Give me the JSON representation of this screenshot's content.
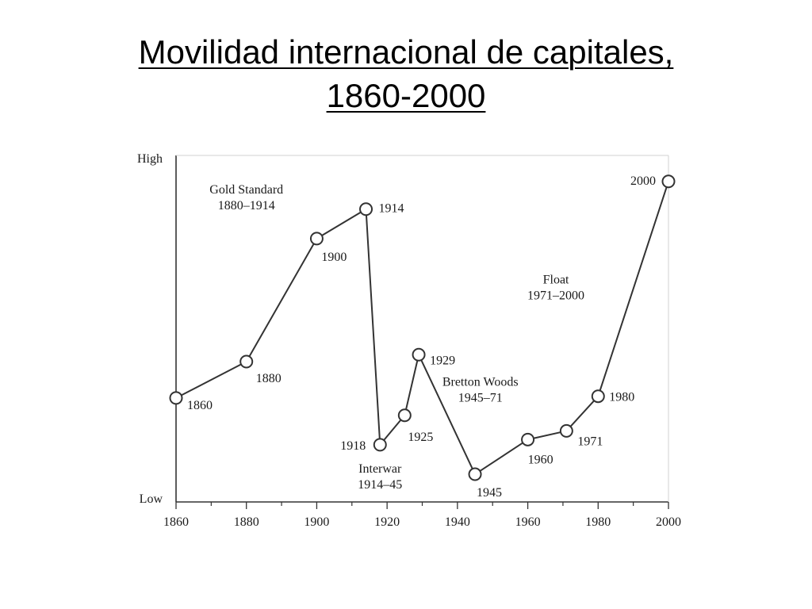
{
  "slide": {
    "title_line1": "Movilidad internacional de capitales,",
    "title_line2": "1860-2000"
  },
  "chart_data": {
    "type": "line",
    "title": "",
    "xlabel": "",
    "ylabel": "",
    "xlim": [
      1860,
      2000
    ],
    "ylim": [
      0,
      100
    ],
    "x_ticks": [
      1860,
      1880,
      1900,
      1920,
      1940,
      1960,
      1980,
      2000
    ],
    "x_minor_step": 10,
    "y_tick_labels": {
      "high": "High",
      "low": "Low"
    },
    "grid": false,
    "legend": "none",
    "series": [
      {
        "x": [
          1860,
          1880,
          1900,
          1914,
          1918,
          1925,
          1929,
          1945,
          1960,
          1971,
          1980,
          2000
        ],
        "y": [
          30,
          40.5,
          76,
          84.5,
          16.5,
          25,
          42.5,
          8,
          18,
          20.5,
          30.5,
          92.5
        ]
      }
    ],
    "point_labels": [
      "1860",
      "1880",
      "1900",
      "1914",
      "1918",
      "1925",
      "1929",
      "1945",
      "1960",
      "1971",
      "1980",
      "2000"
    ],
    "annotations": [
      {
        "lines": [
          "Gold Standard",
          "1880–1914"
        ],
        "x": 1880,
        "y": 89
      },
      {
        "lines": [
          "Interwar",
          "1914–45"
        ],
        "x": 1918,
        "y": 8.5
      },
      {
        "lines": [
          "Bretton Woods",
          "1945–71"
        ],
        "x": 1946.5,
        "y": 33.5
      },
      {
        "lines": [
          "Float",
          "1971–2000"
        ],
        "x": 1968,
        "y": 63
      }
    ],
    "colors": {
      "line": "#333333",
      "axis": "#333333",
      "text": "#1a1a1a",
      "marker_fill": "#ffffff"
    }
  }
}
